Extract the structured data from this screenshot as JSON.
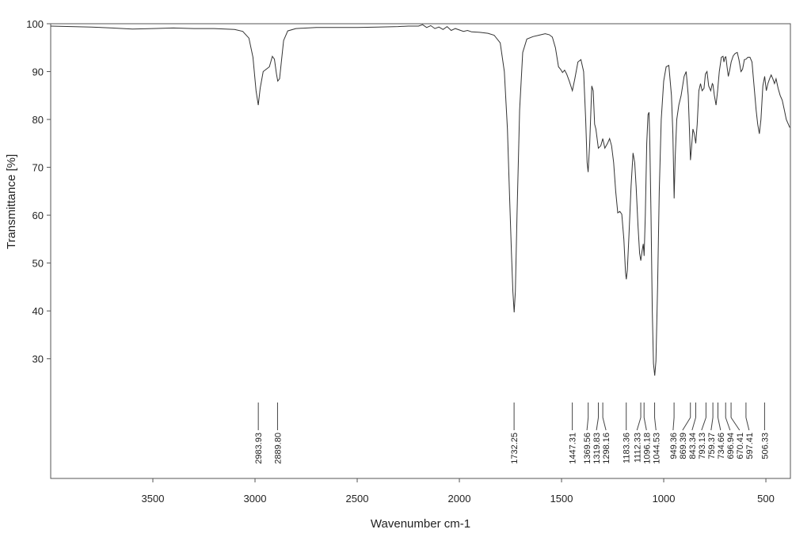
{
  "chart_data": {
    "type": "line",
    "title": "",
    "xlabel": "Wavenumber cm-1",
    "ylabel": "Transmittance [%]",
    "xlim": [
      4000,
      380
    ],
    "ylim": [
      5,
      100
    ],
    "x_reversed": true,
    "grid": false,
    "x_ticks": [
      {
        "value": 3500,
        "label": "3500"
      },
      {
        "value": 3000,
        "label": "3000"
      },
      {
        "value": 2500,
        "label": "2500"
      },
      {
        "value": 2000,
        "label": "2000"
      },
      {
        "value": 1500,
        "label": "1500"
      },
      {
        "value": 1000,
        "label": "1000"
      },
      {
        "value": 500,
        "label": "500"
      }
    ],
    "y_ticks": [
      {
        "value": 100,
        "label": "100"
      },
      {
        "value": 90,
        "label": "90"
      },
      {
        "value": 80,
        "label": "80"
      },
      {
        "value": 70,
        "label": "70"
      },
      {
        "value": 60,
        "label": "60"
      },
      {
        "value": 50,
        "label": "50"
      },
      {
        "value": 40,
        "label": "40"
      },
      {
        "value": 30,
        "label": "30"
      }
    ],
    "series": [
      {
        "color": "#333333",
        "points": [
          [
            4000,
            99.5
          ],
          [
            3900,
            99.4
          ],
          [
            3800,
            99.3
          ],
          [
            3700,
            99.1
          ],
          [
            3600,
            98.9
          ],
          [
            3500,
            99.0
          ],
          [
            3400,
            99.1
          ],
          [
            3300,
            99.0
          ],
          [
            3200,
            99.0
          ],
          [
            3100,
            98.8
          ],
          [
            3060,
            98.4
          ],
          [
            3030,
            97.0
          ],
          [
            3010,
            93.0
          ],
          [
            2995,
            86.0
          ],
          [
            2984,
            83.0
          ],
          [
            2975,
            86.5
          ],
          [
            2960,
            90.0
          ],
          [
            2945,
            90.5
          ],
          [
            2930,
            91.0
          ],
          [
            2915,
            93.2
          ],
          [
            2905,
            92.6
          ],
          [
            2895,
            89.5
          ],
          [
            2889,
            88.0
          ],
          [
            2880,
            88.5
          ],
          [
            2860,
            96.5
          ],
          [
            2840,
            98.5
          ],
          [
            2800,
            99.0
          ],
          [
            2700,
            99.2
          ],
          [
            2600,
            99.2
          ],
          [
            2500,
            99.2
          ],
          [
            2400,
            99.3
          ],
          [
            2300,
            99.4
          ],
          [
            2250,
            99.5
          ],
          [
            2200,
            99.5
          ],
          [
            2180,
            99.8
          ],
          [
            2160,
            99.2
          ],
          [
            2140,
            99.6
          ],
          [
            2120,
            99.0
          ],
          [
            2100,
            99.3
          ],
          [
            2080,
            98.8
          ],
          [
            2060,
            99.4
          ],
          [
            2040,
            98.6
          ],
          [
            2020,
            99.0
          ],
          [
            2000,
            98.7
          ],
          [
            1980,
            98.4
          ],
          [
            1960,
            98.6
          ],
          [
            1940,
            98.3
          ],
          [
            1900,
            98.2
          ],
          [
            1860,
            98.0
          ],
          [
            1830,
            97.6
          ],
          [
            1800,
            96.0
          ],
          [
            1780,
            90.0
          ],
          [
            1765,
            78.0
          ],
          [
            1755,
            65.0
          ],
          [
            1745,
            52.0
          ],
          [
            1738,
            44.0
          ],
          [
            1732,
            39.7
          ],
          [
            1726,
            44.0
          ],
          [
            1718,
            60.0
          ],
          [
            1705,
            82.0
          ],
          [
            1690,
            94.0
          ],
          [
            1670,
            96.8
          ],
          [
            1640,
            97.3
          ],
          [
            1610,
            97.6
          ],
          [
            1580,
            97.9
          ],
          [
            1560,
            97.7
          ],
          [
            1545,
            97.2
          ],
          [
            1530,
            95.0
          ],
          [
            1515,
            91.0
          ],
          [
            1505,
            90.5
          ],
          [
            1495,
            89.8
          ],
          [
            1485,
            90.3
          ],
          [
            1475,
            89.5
          ],
          [
            1462,
            88.0
          ],
          [
            1447,
            86.0
          ],
          [
            1435,
            88.5
          ],
          [
            1420,
            92.0
          ],
          [
            1405,
            92.5
          ],
          [
            1392,
            90.0
          ],
          [
            1382,
            80.0
          ],
          [
            1375,
            71.0
          ],
          [
            1370,
            69.0
          ],
          [
            1362,
            75.0
          ],
          [
            1352,
            87.0
          ],
          [
            1345,
            86.0
          ],
          [
            1338,
            79.0
          ],
          [
            1332,
            78.0
          ],
          [
            1320,
            74.0
          ],
          [
            1308,
            74.5
          ],
          [
            1298,
            76.0
          ],
          [
            1288,
            74.0
          ],
          [
            1275,
            75.0
          ],
          [
            1265,
            76.0
          ],
          [
            1255,
            74.5
          ],
          [
            1245,
            71.0
          ],
          [
            1235,
            65.0
          ],
          [
            1225,
            60.5
          ],
          [
            1215,
            60.8
          ],
          [
            1205,
            60.2
          ],
          [
            1195,
            55.0
          ],
          [
            1187,
            48.0
          ],
          [
            1183,
            46.6
          ],
          [
            1178,
            48.5
          ],
          [
            1170,
            56.0
          ],
          [
            1160,
            66.0
          ],
          [
            1150,
            73.0
          ],
          [
            1142,
            71.0
          ],
          [
            1135,
            66.0
          ],
          [
            1126,
            58.0
          ],
          [
            1118,
            52.0
          ],
          [
            1112,
            50.5
          ],
          [
            1106,
            52.5
          ],
          [
            1100,
            54.0
          ],
          [
            1096,
            51.5
          ],
          [
            1090,
            60.0
          ],
          [
            1083,
            75.0
          ],
          [
            1077,
            81.0
          ],
          [
            1072,
            81.5
          ],
          [
            1068,
            75.0
          ],
          [
            1062,
            60.0
          ],
          [
            1056,
            40.0
          ],
          [
            1050,
            29.0
          ],
          [
            1044,
            26.5
          ],
          [
            1038,
            29.5
          ],
          [
            1030,
            45.0
          ],
          [
            1022,
            65.0
          ],
          [
            1012,
            80.0
          ],
          [
            1000,
            88.0
          ],
          [
            988,
            91.0
          ],
          [
            975,
            91.3
          ],
          [
            962,
            85.0
          ],
          [
            955,
            77.0
          ],
          [
            949,
            63.5
          ],
          [
            944,
            72.0
          ],
          [
            936,
            80.0
          ],
          [
            926,
            83.0
          ],
          [
            915,
            85.0
          ],
          [
            900,
            89.0
          ],
          [
            890,
            90.0
          ],
          [
            880,
            85.0
          ],
          [
            874,
            78.0
          ],
          [
            869,
            71.5
          ],
          [
            864,
            74.0
          ],
          [
            857,
            78.0
          ],
          [
            850,
            77.0
          ],
          [
            843,
            75.0
          ],
          [
            836,
            79.0
          ],
          [
            828,
            86.0
          ],
          [
            820,
            87.5
          ],
          [
            812,
            86.0
          ],
          [
            803,
            86.5
          ],
          [
            796,
            89.5
          ],
          [
            788,
            90.0
          ],
          [
            780,
            87.0
          ],
          [
            770,
            86.0
          ],
          [
            762,
            87.5
          ],
          [
            759,
            87.3
          ],
          [
            752,
            85.0
          ],
          [
            744,
            83.0
          ],
          [
            736,
            86.0
          ],
          [
            728,
            90.0
          ],
          [
            718,
            93.0
          ],
          [
            710,
            93.2
          ],
          [
            705,
            92.0
          ],
          [
            700,
            93.0
          ],
          [
            696,
            93.1
          ],
          [
            690,
            91.0
          ],
          [
            684,
            89.0
          ],
          [
            676,
            90.5
          ],
          [
            670,
            92.0
          ],
          [
            660,
            93.3
          ],
          [
            650,
            93.8
          ],
          [
            640,
            94.0
          ],
          [
            632,
            92.5
          ],
          [
            622,
            90.0
          ],
          [
            614,
            90.5
          ],
          [
            605,
            92.5
          ],
          [
            597,
            92.6
          ],
          [
            588,
            93.0
          ],
          [
            578,
            93.0
          ],
          [
            568,
            92.0
          ],
          [
            558,
            87.0
          ],
          [
            548,
            82.0
          ],
          [
            540,
            79.0
          ],
          [
            532,
            77.0
          ],
          [
            524,
            80.0
          ],
          [
            515,
            87.0
          ],
          [
            506,
            89.0
          ],
          [
            498,
            86.0
          ],
          [
            490,
            87.5
          ],
          [
            482,
            88.5
          ],
          [
            474,
            89.3
          ],
          [
            466,
            88.5
          ],
          [
            458,
            87.5
          ],
          [
            450,
            88.5
          ],
          [
            440,
            86.5
          ],
          [
            430,
            85.0
          ],
          [
            420,
            84.0
          ],
          [
            410,
            82.0
          ],
          [
            400,
            80.0
          ],
          [
            390,
            79.0
          ],
          [
            383,
            78.3
          ]
        ]
      }
    ],
    "peaks": [
      {
        "x": 2983.93,
        "label": "2983.93"
      },
      {
        "x": 2889.8,
        "label": "2889.80"
      },
      {
        "x": 1732.25,
        "label": "1732.25"
      },
      {
        "x": 1447.31,
        "label": "1447.31"
      },
      {
        "x": 1369.56,
        "label": "1369.56"
      },
      {
        "x": 1319.83,
        "label": "1319.83"
      },
      {
        "x": 1298.16,
        "label": "1298.16"
      },
      {
        "x": 1183.36,
        "label": "1183.36"
      },
      {
        "x": 1112.33,
        "label": "1112.33"
      },
      {
        "x": 1096.18,
        "label": "1096.18"
      },
      {
        "x": 1044.53,
        "label": "1044.53"
      },
      {
        "x": 949.36,
        "label": "949.36"
      },
      {
        "x": 869.39,
        "label": "869.39"
      },
      {
        "x": 843.34,
        "label": "843.34"
      },
      {
        "x": 793.13,
        "label": "793.13"
      },
      {
        "x": 759.37,
        "label": "759.37"
      },
      {
        "x": 734.66,
        "label": "734.66"
      },
      {
        "x": 696.94,
        "label": "696.94"
      },
      {
        "x": 670.41,
        "label": "670.41"
      },
      {
        "x": 597.41,
        "label": "597.41"
      },
      {
        "x": 506.33,
        "label": "506.33"
      }
    ]
  }
}
